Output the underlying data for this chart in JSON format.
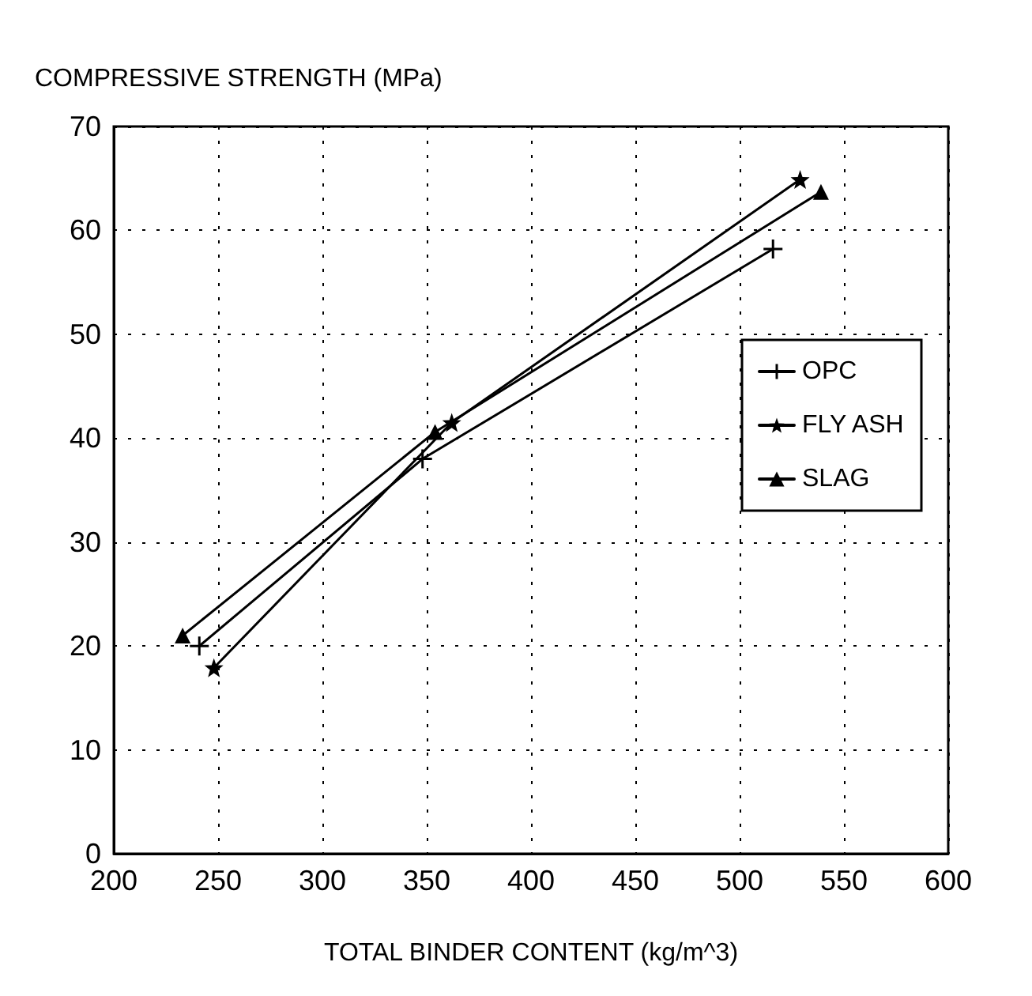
{
  "chart_data": {
    "type": "line",
    "xlabel": "TOTAL BINDER CONTENT (kg/m^3)",
    "ylabel": "COMPRESSIVE STRENGTH (MPa)",
    "xlim": [
      200,
      600
    ],
    "xticks": [
      200,
      250,
      300,
      350,
      400,
      450,
      500,
      550,
      600
    ],
    "ylim": [
      0,
      70
    ],
    "yticks": [
      0,
      10,
      20,
      30,
      40,
      50,
      60,
      70
    ],
    "grid": true,
    "legend": "right",
    "line_style": "solid",
    "series": [
      {
        "name": "OPC",
        "color": "#000000",
        "marker": "cross",
        "x": [
          241,
          348,
          516
        ],
        "values": [
          20,
          38,
          58.2
        ]
      },
      {
        "name": "FLY ASH",
        "color": "#000000",
        "marker": "star",
        "x": [
          248,
          362,
          529
        ],
        "values": [
          17.9,
          41.5,
          64.9
        ]
      },
      {
        "name": "SLAG",
        "color": "#000000",
        "marker": "triangle",
        "x": [
          233,
          354,
          539
        ],
        "values": [
          21,
          40.6,
          63.7
        ]
      }
    ]
  }
}
